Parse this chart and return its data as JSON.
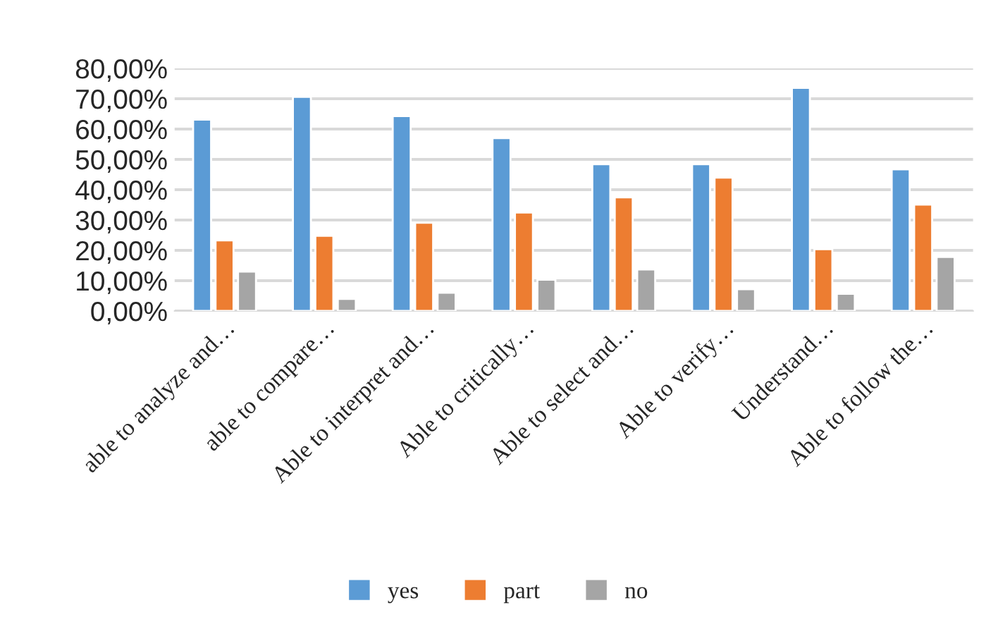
{
  "chart_data": {
    "type": "bar",
    "categories": [
      "able to analyze and…",
      "able to compare…",
      "Able to interpret and…",
      "Able to critically…",
      "Able to select and…",
      "Able to verify…",
      "Understand…",
      "Able to follow the…"
    ],
    "series": [
      {
        "name": "yes",
        "color": "#5b9bd5",
        "values": [
          63.1,
          70.6,
          64.3,
          57.0,
          48.4,
          48.4,
          73.6,
          46.7
        ]
      },
      {
        "name": "part",
        "color": "#ed7d31",
        "values": [
          23.3,
          24.8,
          29.1,
          32.5,
          37.5,
          44.0,
          20.4,
          35.1
        ]
      },
      {
        "name": "no",
        "color": "#a5a5a5",
        "values": [
          13.0,
          4.0,
          6.0,
          10.3,
          13.7,
          7.2,
          5.7,
          17.8
        ]
      }
    ],
    "ylim": [
      0,
      80
    ],
    "yticks": [
      {
        "value": 0,
        "label": "0,00%"
      },
      {
        "value": 10,
        "label": "10,00%"
      },
      {
        "value": 20,
        "label": "20,00%"
      },
      {
        "value": 30,
        "label": "30,00%"
      },
      {
        "value": 40,
        "label": "40,00%"
      },
      {
        "value": 50,
        "label": "50,00%"
      },
      {
        "value": 60,
        "label": "60,00%"
      },
      {
        "value": 70,
        "label": "70,00%"
      },
      {
        "value": 80,
        "label": "80,00%"
      }
    ],
    "grid": "y",
    "legend": "bottom"
  }
}
